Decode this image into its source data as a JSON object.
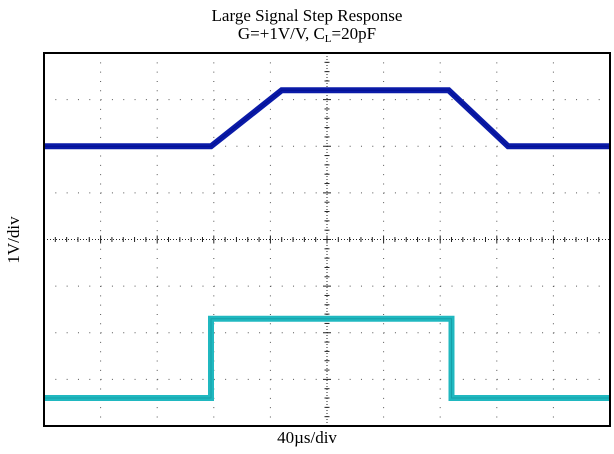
{
  "chart_data": {
    "type": "line",
    "title": "Large Signal Step Response",
    "subtitle_prefix": "G=+1V/V, C",
    "subtitle_sub": "L",
    "subtitle_suffix": "=20pF",
    "xlabel": "40µs/div",
    "ylabel": "1V/div",
    "grid": true,
    "x_divisions": 10,
    "y_divisions": 8,
    "xlim": [
      0,
      10
    ],
    "ylim": [
      0,
      8
    ],
    "series": [
      {
        "color": "#0a1aa8",
        "x": [
          0,
          2.95,
          4.2,
          7.15,
          8.2,
          10
        ],
        "y": [
          6.0,
          6.0,
          7.2,
          7.2,
          6.0,
          6.0
        ]
      },
      {
        "color": "#20b8c0",
        "x": [
          0,
          2.95,
          2.95,
          7.2,
          7.2,
          10
        ],
        "y": [
          0.6,
          0.6,
          2.3,
          2.3,
          0.6,
          0.6
        ]
      }
    ]
  }
}
